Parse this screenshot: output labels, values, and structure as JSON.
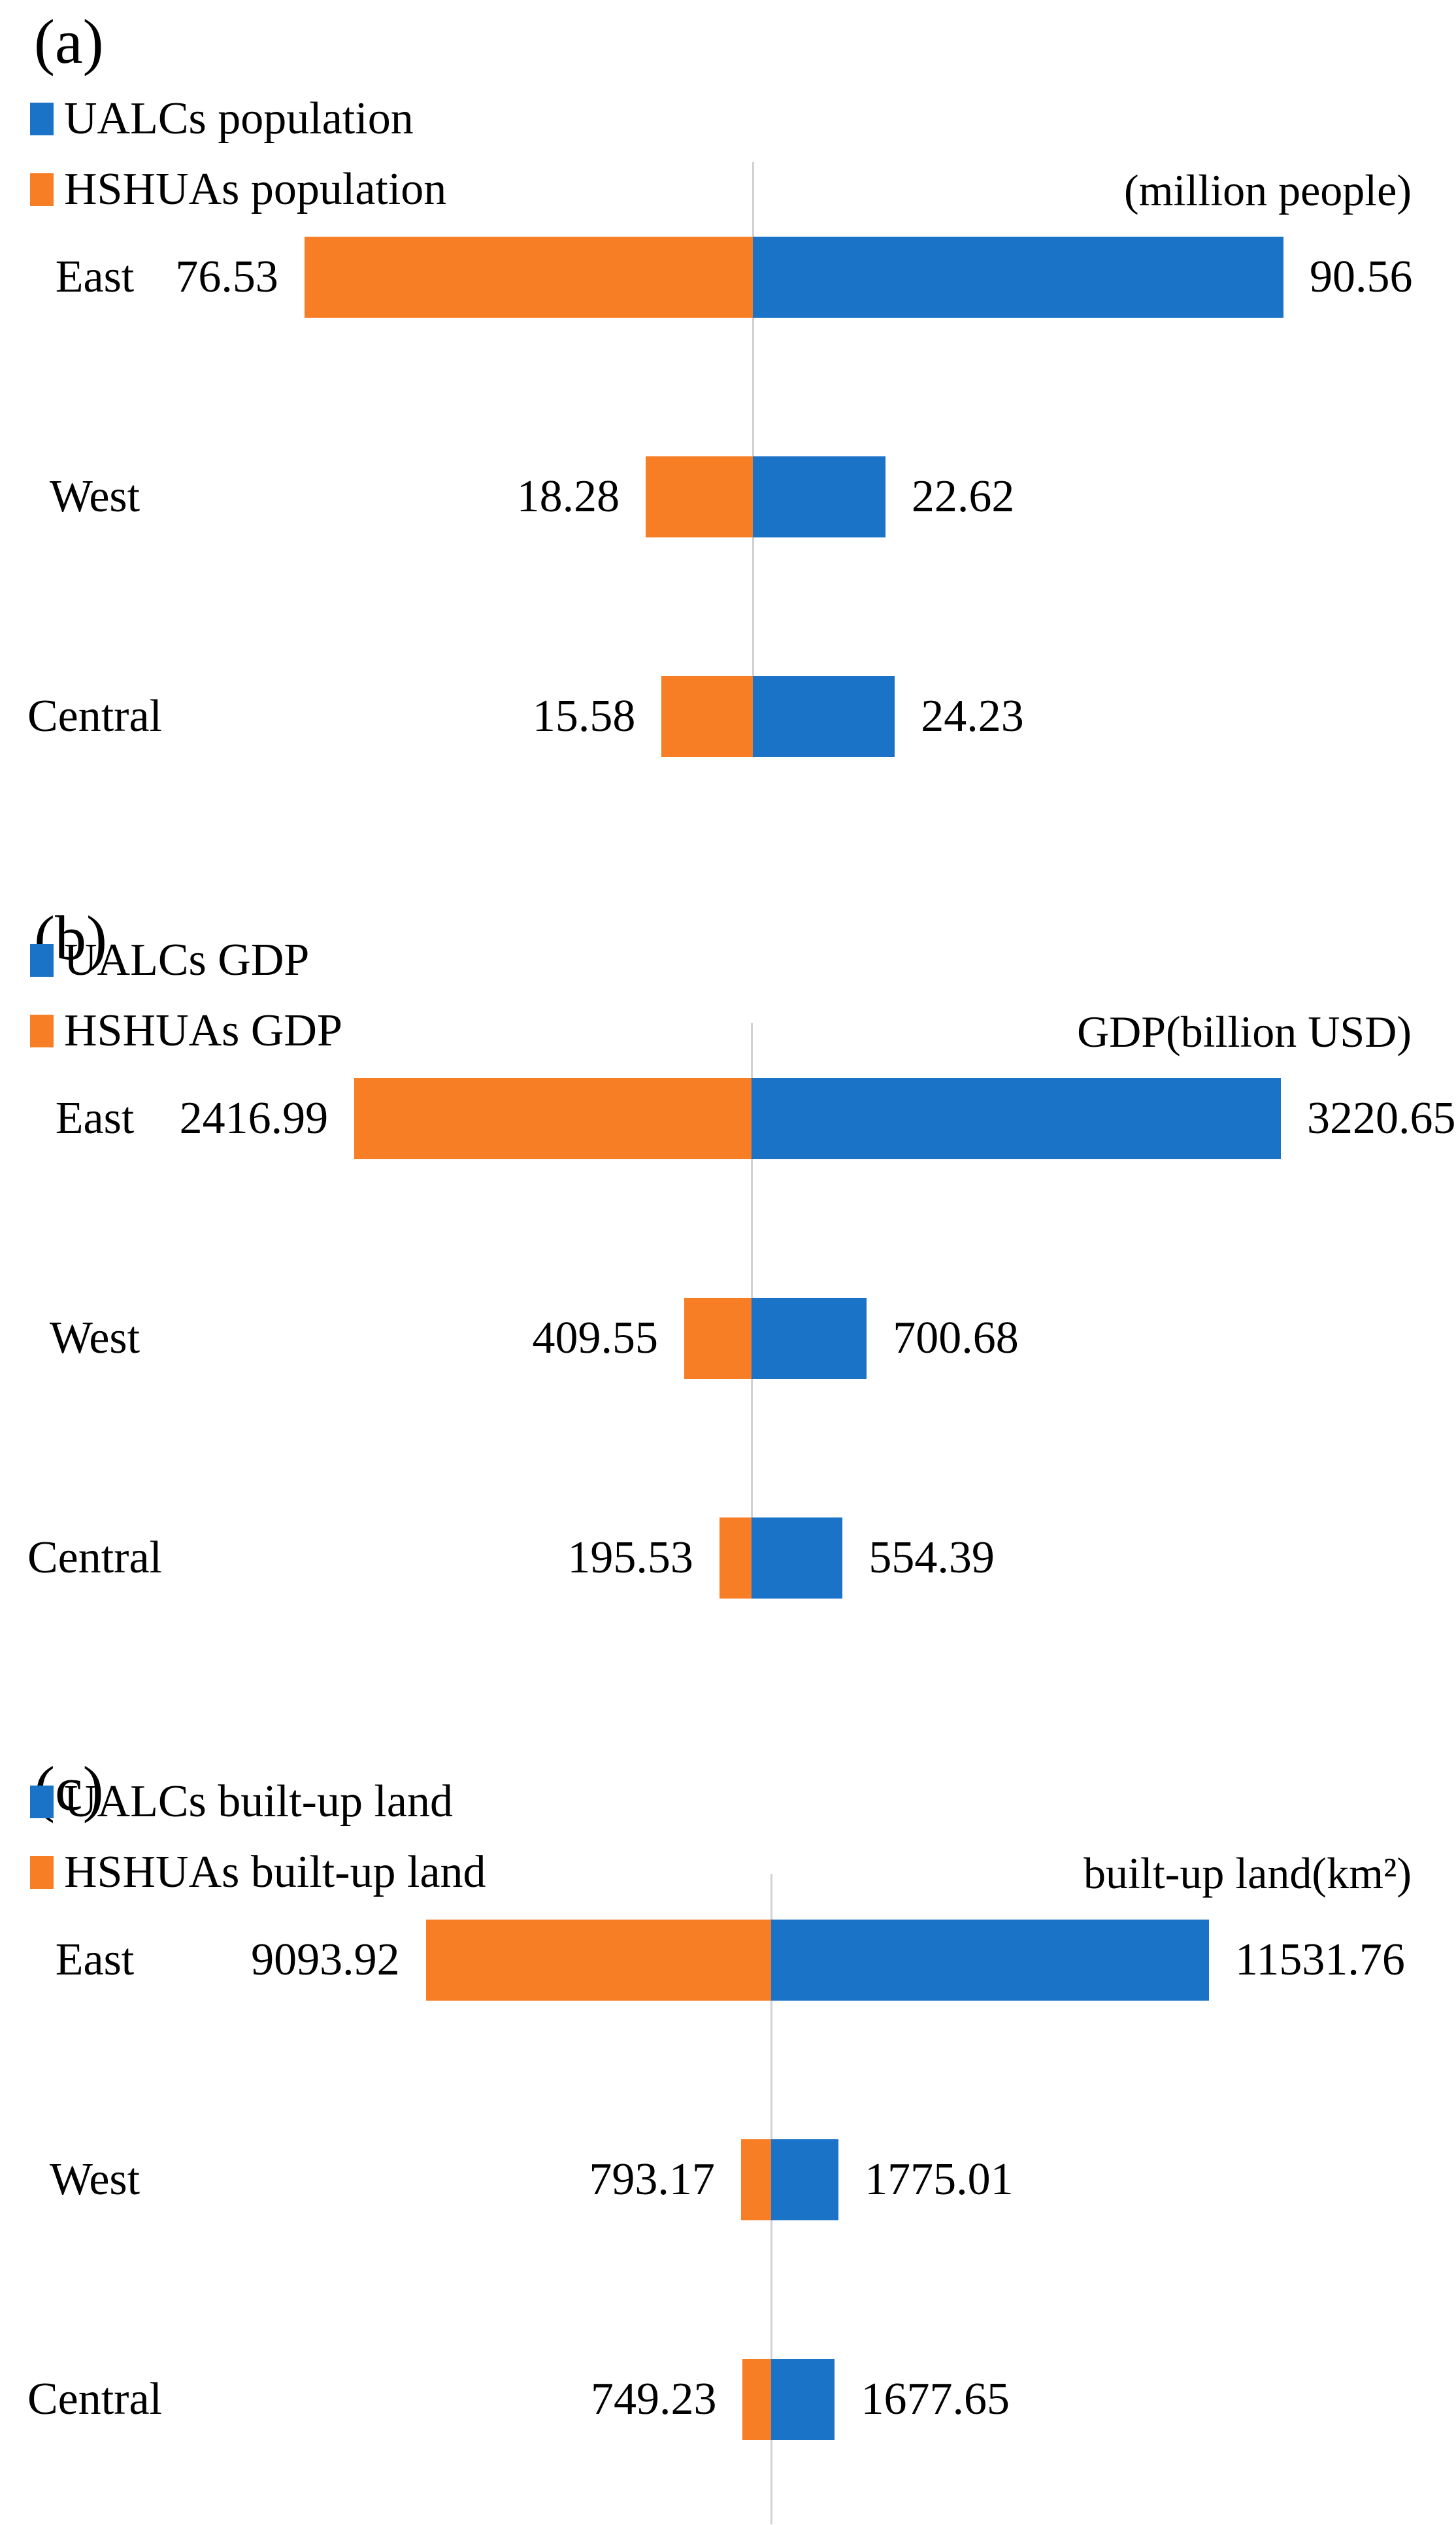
{
  "figure": {
    "background": "#ffffff",
    "axis_line_color": "#d2d2d2"
  },
  "colors": {
    "ualcs_blue": "#1b73c7",
    "hshuas_orange": "#f87e26"
  },
  "chart_data": [
    {
      "panel": "(a)",
      "type": "bar",
      "orientation": "diverging-horizontal",
      "unit_label": "(million people)",
      "legend": [
        {
          "label": "UALCs population",
          "color": "#1b73c7"
        },
        {
          "label": "HSHUAs population",
          "color": "#f87e26"
        }
      ],
      "categories": [
        "East",
        "West",
        "Central"
      ],
      "series": [
        {
          "name": "HSHUAs population",
          "side": "left",
          "color": "#f87e26",
          "values": [
            76.53,
            18.28,
            15.58
          ]
        },
        {
          "name": "UALCs population",
          "side": "right",
          "color": "#1b73c7",
          "values": [
            90.56,
            22.62,
            24.23
          ]
        }
      ],
      "baseline": 0,
      "grid": false,
      "legend_position": "top-left"
    },
    {
      "panel": "(b)",
      "type": "bar",
      "orientation": "diverging-horizontal",
      "unit_label": "GDP(billion USD)",
      "legend": [
        {
          "label": "UALCs GDP",
          "color": "#1b73c7"
        },
        {
          "label": "HSHUAs GDP",
          "color": "#f87e26"
        }
      ],
      "categories": [
        "East",
        "West",
        "Central"
      ],
      "series": [
        {
          "name": "HSHUAs GDP",
          "side": "left",
          "color": "#f87e26",
          "values": [
            2416.99,
            409.55,
            195.53
          ]
        },
        {
          "name": "UALCs GDP",
          "side": "right",
          "color": "#1b73c7",
          "values": [
            3220.65,
            700.68,
            554.39
          ]
        }
      ],
      "baseline": 0,
      "grid": false,
      "legend_position": "top-left"
    },
    {
      "panel": "(c)",
      "type": "bar",
      "orientation": "diverging-horizontal",
      "unit_label": "built-up land(km²)",
      "legend": [
        {
          "label": "UALCs built-up land",
          "color": "#1b73c7"
        },
        {
          "label": "HSHUAs built-up land",
          "color": "#f87e26"
        }
      ],
      "categories": [
        "East",
        "West",
        "Central"
      ],
      "series": [
        {
          "name": "HSHUAs built-up land",
          "side": "left",
          "color": "#f87e26",
          "values": [
            9093.92,
            793.17,
            749.23
          ]
        },
        {
          "name": "UALCs built-up land",
          "side": "right",
          "color": "#1b73c7",
          "values": [
            11531.76,
            1775.01,
            1677.65
          ]
        }
      ],
      "baseline": 0,
      "grid": false,
      "legend_position": "top-left"
    }
  ]
}
